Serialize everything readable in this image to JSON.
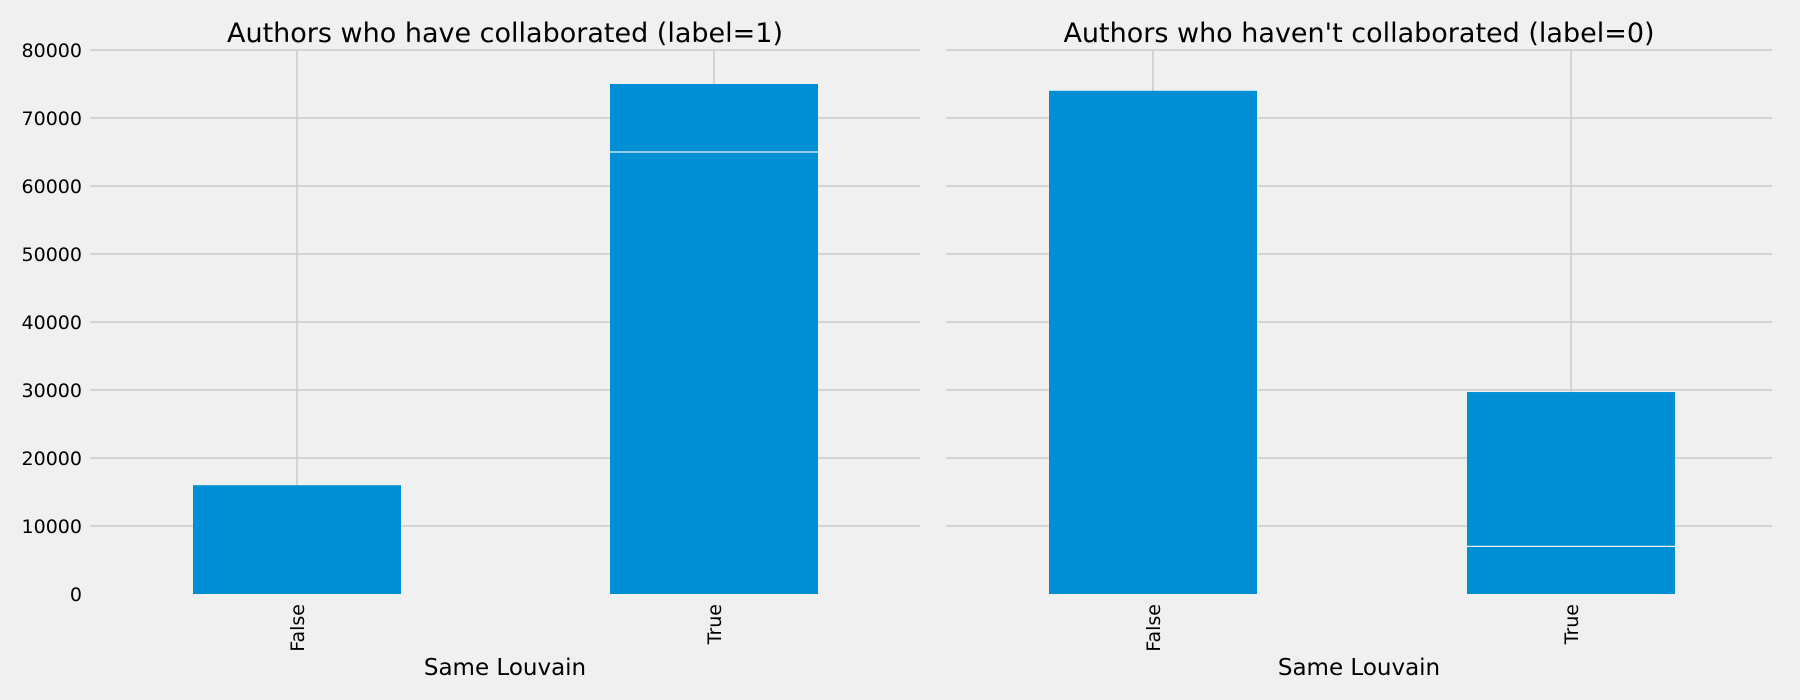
{
  "chart_data": [
    {
      "type": "bar",
      "title": "Authors who have collaborated (label=1)",
      "xlabel": "Same Louvain",
      "ylabel": "",
      "categories": [
        "False",
        "True"
      ],
      "values": [
        16000,
        75000
      ],
      "segment_lines": [
        null,
        65000
      ],
      "ylim": [
        0,
        80000
      ],
      "yticks": [
        0,
        10000,
        20000,
        30000,
        40000,
        50000,
        60000,
        70000,
        80000
      ],
      "show_yticklabels": true,
      "grid": true,
      "color": "#008fd5"
    },
    {
      "type": "bar",
      "title": "Authors who haven't collaborated (label=0)",
      "xlabel": "Same Louvain",
      "ylabel": "",
      "categories": [
        "False",
        "True"
      ],
      "values": [
        74000,
        29700
      ],
      "segment_lines": [
        null,
        7000
      ],
      "ylim": [
        0,
        80000
      ],
      "yticks": [
        0,
        10000,
        20000,
        30000,
        40000,
        50000,
        60000,
        70000,
        80000
      ],
      "show_yticklabels": false,
      "grid": true,
      "color": "#008fd5"
    }
  ]
}
